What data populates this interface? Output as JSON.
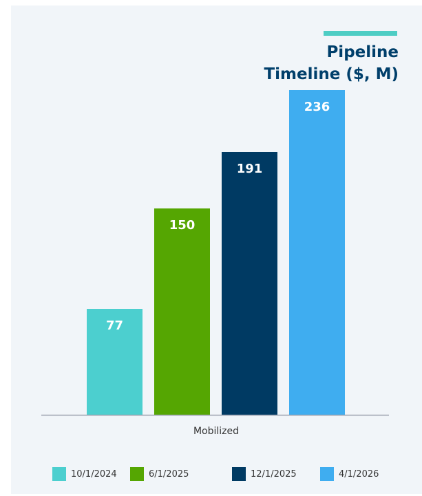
{
  "title": "Pipeline Timeline ($, M)",
  "colors": {
    "accent": "#4ecdc4",
    "title": "#003f6b",
    "axis": "#9ca3af",
    "panel": "#f1f5f9"
  },
  "chart_data": {
    "type": "bar",
    "title": "Pipeline Timeline ($, M)",
    "categories": [
      "Mobilized"
    ],
    "xlabel": "Mobilized",
    "ylabel": "",
    "ylim": [
      0,
      250
    ],
    "grid": false,
    "legend_position": "bottom",
    "series": [
      {
        "name": "10/1/2024",
        "values": [
          77
        ],
        "color": "#4ccfcf"
      },
      {
        "name": "6/1/2025",
        "values": [
          150
        ],
        "color": "#55a602"
      },
      {
        "name": "12/1/2025",
        "values": [
          191
        ],
        "color": "#003a63"
      },
      {
        "name": "4/1/2026",
        "values": [
          236
        ],
        "color": "#3fadf0"
      }
    ]
  }
}
